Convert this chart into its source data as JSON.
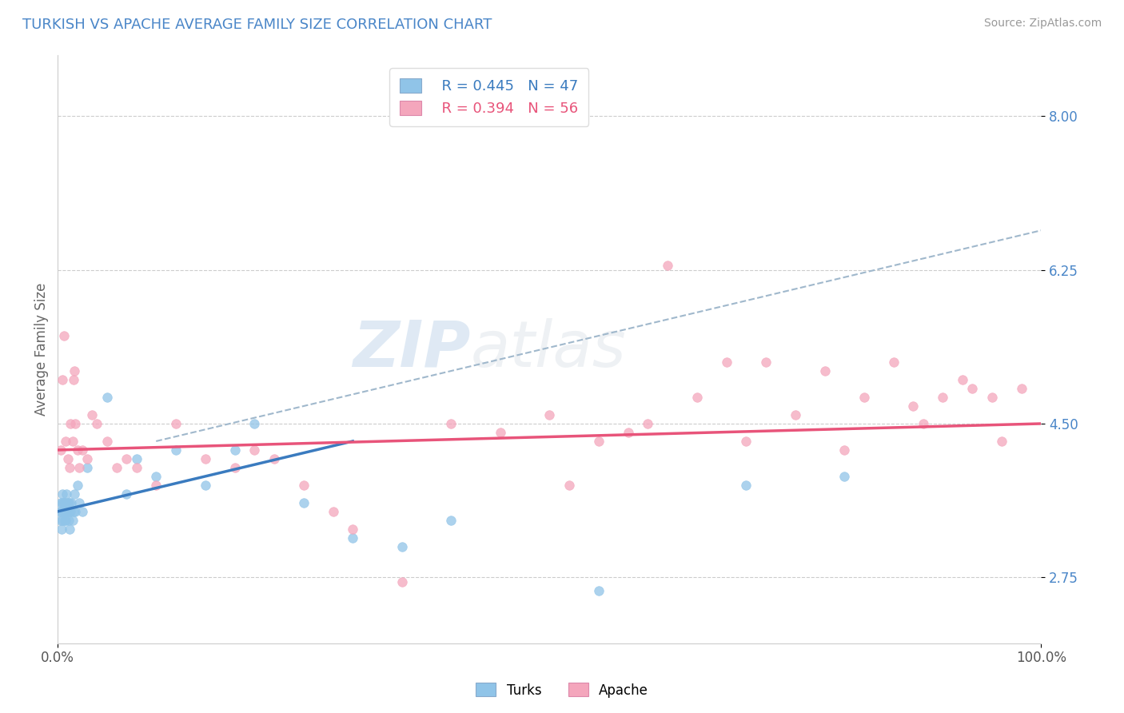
{
  "title": "TURKISH VS APACHE AVERAGE FAMILY SIZE CORRELATION CHART",
  "source": "Source: ZipAtlas.com",
  "ylabel": "Average Family Size",
  "xlim": [
    0,
    100
  ],
  "yticks": [
    2.75,
    4.5,
    6.25,
    8.0
  ],
  "xticklabels": [
    "0.0%",
    "100.0%"
  ],
  "watermark_text": "ZIPatlas",
  "legend_blue_r": "R = 0.445",
  "legend_blue_n": "N = 47",
  "legend_pink_r": "R = 0.394",
  "legend_pink_n": "N = 56",
  "blue_scatter_color": "#90c4e8",
  "pink_scatter_color": "#f4a6bc",
  "blue_line_color": "#3a7bbf",
  "pink_line_color": "#e8547a",
  "dash_line_color": "#a0b8cc",
  "title_color": "#4a86c8",
  "source_color": "#999999",
  "ytick_color": "#4a86c8",
  "turks_x": [
    0.2,
    0.3,
    0.3,
    0.4,
    0.4,
    0.5,
    0.5,
    0.5,
    0.6,
    0.6,
    0.7,
    0.7,
    0.8,
    0.8,
    0.9,
    0.9,
    1.0,
    1.0,
    1.1,
    1.1,
    1.2,
    1.2,
    1.3,
    1.4,
    1.5,
    1.6,
    1.7,
    1.8,
    2.0,
    2.2,
    2.5,
    3.0,
    5.0,
    7.0,
    8.0,
    10.0,
    12.0,
    15.0,
    18.0,
    20.0,
    25.0,
    30.0,
    35.0,
    40.0,
    55.0,
    70.0,
    80.0
  ],
  "turks_y": [
    3.5,
    3.4,
    3.6,
    3.5,
    3.3,
    3.6,
    3.4,
    3.7,
    3.5,
    3.6,
    3.4,
    3.5,
    3.6,
    3.4,
    3.5,
    3.7,
    3.5,
    3.6,
    3.4,
    3.5,
    3.6,
    3.3,
    3.5,
    3.6,
    3.4,
    3.5,
    3.7,
    3.5,
    3.8,
    3.6,
    3.5,
    4.0,
    4.8,
    3.7,
    4.1,
    3.9,
    4.2,
    3.8,
    4.2,
    4.5,
    3.6,
    3.2,
    3.1,
    3.4,
    2.6,
    3.8,
    3.9
  ],
  "apache_x": [
    0.3,
    0.5,
    0.6,
    0.8,
    1.0,
    1.2,
    1.3,
    1.5,
    1.6,
    1.7,
    1.8,
    2.0,
    2.2,
    2.5,
    3.0,
    3.5,
    4.0,
    5.0,
    6.0,
    7.0,
    8.0,
    10.0,
    12.0,
    15.0,
    18.0,
    20.0,
    22.0,
    25.0,
    28.0,
    30.0,
    35.0,
    40.0,
    45.0,
    50.0,
    52.0,
    55.0,
    58.0,
    60.0,
    62.0,
    65.0,
    68.0,
    70.0,
    72.0,
    75.0,
    78.0,
    80.0,
    82.0,
    85.0,
    87.0,
    88.0,
    90.0,
    92.0,
    93.0,
    95.0,
    96.0,
    98.0
  ],
  "apache_y": [
    4.2,
    5.0,
    5.5,
    4.3,
    4.1,
    4.0,
    4.5,
    4.3,
    5.0,
    5.1,
    4.5,
    4.2,
    4.0,
    4.2,
    4.1,
    4.6,
    4.5,
    4.3,
    4.0,
    4.1,
    4.0,
    3.8,
    4.5,
    4.1,
    4.0,
    4.2,
    4.1,
    3.8,
    3.5,
    3.3,
    2.7,
    4.5,
    4.4,
    4.6,
    3.8,
    4.3,
    4.4,
    4.5,
    6.3,
    4.8,
    5.2,
    4.3,
    5.2,
    4.6,
    5.1,
    4.2,
    4.8,
    5.2,
    4.7,
    4.5,
    4.8,
    5.0,
    4.9,
    4.8,
    4.3,
    4.9
  ],
  "blue_line_x0": 0,
  "blue_line_y0": 3.5,
  "blue_line_x1": 30,
  "blue_line_y1": 4.3,
  "pink_line_x0": 0,
  "pink_line_y0": 4.2,
  "pink_line_x1": 100,
  "pink_line_y1": 4.5,
  "dash_line_x0": 10,
  "dash_line_y0": 4.3,
  "dash_line_x1": 100,
  "dash_line_y1": 6.7
}
